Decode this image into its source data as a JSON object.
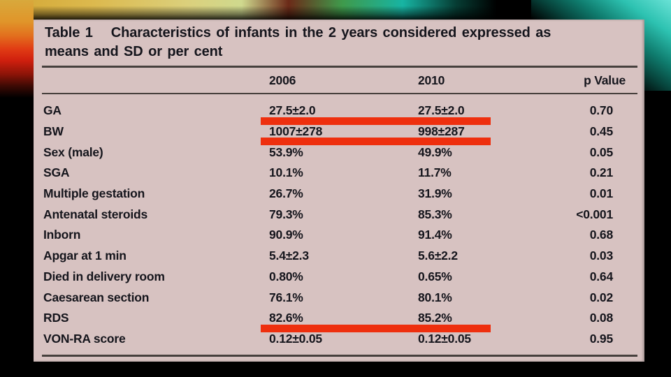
{
  "colors": {
    "card-bg": "#d7c2c1",
    "text": "#15151c",
    "rule": "#46403d",
    "highlight": "#ee2f0e",
    "accent-gold": "#dcaa34",
    "accent-red": "#d92b10",
    "accent-green": "#2f9a4a",
    "accent-teal": "#1fbcac"
  },
  "table": {
    "title_label": "Table 1",
    "title_text": "Characteristics of infants in the 2 years considered expressed as means and SD or per cent",
    "columns": [
      "2006",
      "2010",
      "p Value"
    ],
    "rows": [
      {
        "label": "GA",
        "y2006": "27.5±2.0",
        "y2010": "27.5±2.0",
        "p": "0.70",
        "highlight": true
      },
      {
        "label": "BW",
        "y2006": "1007±278",
        "y2010": "998±287",
        "p": "0.45",
        "highlight": true
      },
      {
        "label": "Sex (male)",
        "y2006": "53.9%",
        "y2010": "49.9%",
        "p": "0.05",
        "highlight": false
      },
      {
        "label": "SGA",
        "y2006": "10.1%",
        "y2010": "11.7%",
        "p": "0.21",
        "highlight": false
      },
      {
        "label": "Multiple gestation",
        "y2006": "26.7%",
        "y2010": "31.9%",
        "p": "0.01",
        "highlight": false
      },
      {
        "label": "Antenatal steroids",
        "y2006": "79.3%",
        "y2010": "85.3%",
        "p": "<0.001",
        "highlight": false
      },
      {
        "label": "Inborn",
        "y2006": "90.9%",
        "y2010": "91.4%",
        "p": "0.68",
        "highlight": false
      },
      {
        "label": "Apgar at 1 min",
        "y2006": "5.4±2.3",
        "y2010": "5.6±2.2",
        "p": "0.03",
        "highlight": false
      },
      {
        "label": "Died in delivery room",
        "y2006": "0.80%",
        "y2010": "0.65%",
        "p": "0.64",
        "highlight": false
      },
      {
        "label": "Caesarean section",
        "y2006": "76.1%",
        "y2010": "80.1%",
        "p": "0.02",
        "highlight": false
      },
      {
        "label": "RDS",
        "y2006": "82.6%",
        "y2010": "85.2%",
        "p": "0.08",
        "highlight": true
      },
      {
        "label": "VON-RA score",
        "y2006": "0.12±0.05",
        "y2010": "0.12±0.05",
        "p": "0.95",
        "highlight": false
      }
    ]
  }
}
